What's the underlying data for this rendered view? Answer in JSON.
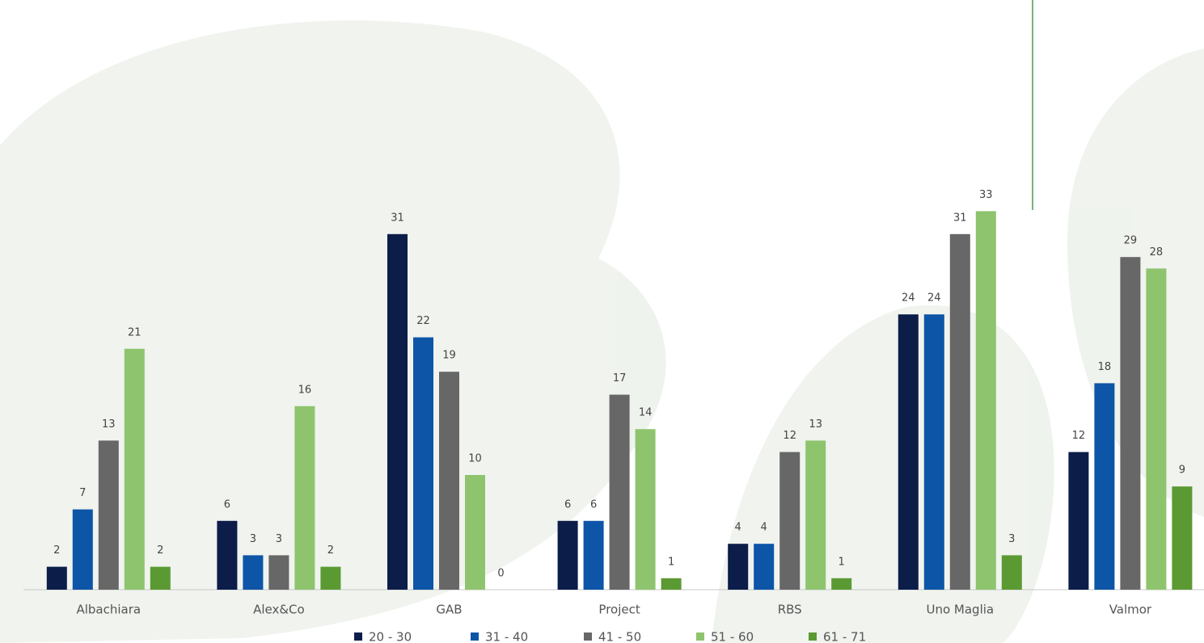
{
  "chart_data": {
    "type": "bar",
    "categories": [
      "Albachiara",
      "Alex&Co",
      "GAB",
      "Project",
      "RBS",
      "Uno Maglia",
      "Valmor"
    ],
    "series": [
      {
        "name": "20 - 30",
        "color": "#0b1d48",
        "values": [
          2,
          6,
          31,
          6,
          4,
          24,
          12
        ]
      },
      {
        "name": "31 - 40",
        "color": "#0d55a6",
        "values": [
          7,
          3,
          22,
          6,
          4,
          24,
          18
        ]
      },
      {
        "name": "41 - 50",
        "color": "#676767",
        "values": [
          13,
          3,
          19,
          17,
          12,
          31,
          29
        ]
      },
      {
        "name": "51 - 60",
        "color": "#8ec46e",
        "values": [
          21,
          16,
          10,
          14,
          13,
          33,
          28
        ]
      },
      {
        "name": "61 - 71",
        "color": "#5b9a33",
        "values": [
          2,
          2,
          0,
          1,
          1,
          3,
          9
        ]
      }
    ],
    "ylim": [
      0,
      35
    ],
    "legend": "bottom"
  }
}
